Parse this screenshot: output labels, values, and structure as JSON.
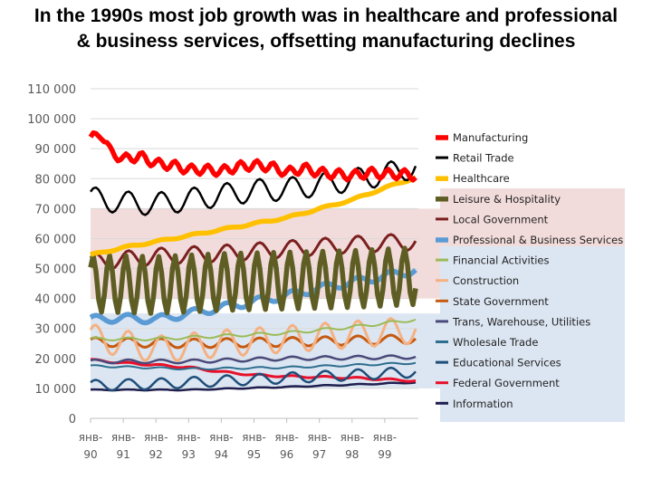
{
  "slide": {
    "title_line1": "In the 1990s most job growth was in healthcare and professional",
    "title_line2": "& business services, offsetting manufacturing declines"
  },
  "chart_data": {
    "type": "line",
    "title": "In the 1990s most job growth was in healthcare and professional & business services, offsetting manufacturing declines",
    "xlabel": "",
    "ylabel": "",
    "ylim": [
      0,
      110000
    ],
    "yticks": [
      "0",
      "10 000",
      "20 000",
      "30 000",
      "40 000",
      "50 000",
      "60 000",
      "70 000",
      "80 000",
      "90 000",
      "100 000",
      "110 000"
    ],
    "xticks": [
      {
        "top": "янв-",
        "bottom": "90"
      },
      {
        "top": "янв-",
        "bottom": "91"
      },
      {
        "top": "янв-",
        "bottom": "92"
      },
      {
        "top": "янв-",
        "bottom": "93"
      },
      {
        "top": "янв-",
        "bottom": "94"
      },
      {
        "top": "янв-",
        "bottom": "95"
      },
      {
        "top": "янв-",
        "bottom": "96"
      },
      {
        "top": "янв-",
        "bottom": "97"
      },
      {
        "top": "янв-",
        "bottom": "98"
      },
      {
        "top": "янв-",
        "bottom": "99"
      }
    ],
    "x_start": "1990-01",
    "x_end": "1999-12",
    "grid": true,
    "legend_position": "right",
    "highlight_bands": [
      {
        "ymin": 40000,
        "ymax": 70000,
        "color": "#f2dcdb"
      },
      {
        "ymin": 10000,
        "ymax": 35000,
        "color": "#dce6f2"
      }
    ],
    "series": [
      {
        "name": "Manufacturing",
        "color": "#ff0000",
        "width": 5.5,
        "points": [
          [
            1990.0,
            93000
          ],
          [
            1990.3,
            95500
          ],
          [
            1990.6,
            89000
          ],
          [
            1991.0,
            86500
          ],
          [
            1991.5,
            87500
          ],
          [
            1992.0,
            85000
          ],
          [
            1992.5,
            84500
          ],
          [
            1993.0,
            83000
          ],
          [
            1993.5,
            83000
          ],
          [
            1994.0,
            82500
          ],
          [
            1994.5,
            84000
          ],
          [
            1995.0,
            84500
          ],
          [
            1995.5,
            84000
          ],
          [
            1996.0,
            82000
          ],
          [
            1996.5,
            83500
          ],
          [
            1997.0,
            82000
          ],
          [
            1997.5,
            81500
          ],
          [
            1998.0,
            81000
          ],
          [
            1998.5,
            82000
          ],
          [
            1999.0,
            81500
          ],
          [
            1999.5,
            81500
          ],
          [
            1999.95,
            81000
          ]
        ],
        "amp": 1600,
        "cycles_per_year": 2
      },
      {
        "name": "Retail Trade",
        "color": "#000000",
        "width": 2.5,
        "points": [
          [
            1990.0,
            73500
          ],
          [
            1991.0,
            72000
          ],
          [
            1992.0,
            71500
          ],
          [
            1993.0,
            73000
          ],
          [
            1994.0,
            74500
          ],
          [
            1995.0,
            76000
          ],
          [
            1996.0,
            76500
          ],
          [
            1997.0,
            78000
          ],
          [
            1998.0,
            79500
          ],
          [
            1999.0,
            81500
          ],
          [
            1999.95,
            84000
          ]
        ],
        "amp": 3800,
        "cycles_per_year": 1
      },
      {
        "name": "Healthcare",
        "color": "#ffc000",
        "width": 5.5,
        "points": [
          [
            1990.0,
            54500
          ],
          [
            1991.0,
            57000
          ],
          [
            1992.0,
            59000
          ],
          [
            1993.0,
            61000
          ],
          [
            1994.0,
            63000
          ],
          [
            1995.0,
            65000
          ],
          [
            1996.0,
            67000
          ],
          [
            1997.0,
            70000
          ],
          [
            1998.0,
            73000
          ],
          [
            1999.0,
            77000
          ],
          [
            1999.95,
            80500
          ]
        ],
        "amp": 300,
        "cycles_per_year": 1
      },
      {
        "name": "Leisure & Hospitality",
        "color": "#5e5e24",
        "width": 5.5,
        "points": [
          [
            1990.0,
            45000
          ],
          [
            1992.0,
            44500
          ],
          [
            1994.0,
            45500
          ],
          [
            1996.0,
            46000
          ],
          [
            1998.0,
            46500
          ],
          [
            1999.95,
            47500
          ]
        ],
        "amp": 9500,
        "cycles_per_year": 2
      },
      {
        "name": "Local Government",
        "color": "#7b1f1f",
        "width": 3,
        "points": [
          [
            1990.0,
            52000
          ],
          [
            1992.0,
            54000
          ],
          [
            1994.0,
            55000
          ],
          [
            1996.0,
            56500
          ],
          [
            1998.0,
            58000
          ],
          [
            1999.95,
            59000
          ]
        ],
        "amp": 2800,
        "cycles_per_year": 1
      },
      {
        "name": "Professional & Business Services",
        "color": "#5b9bd5",
        "width": 5.5,
        "points": [
          [
            1990.0,
            33000
          ],
          [
            1991.0,
            33500
          ],
          [
            1992.0,
            33000
          ],
          [
            1993.0,
            35000
          ],
          [
            1994.0,
            37000
          ],
          [
            1995.0,
            39000
          ],
          [
            1996.0,
            41000
          ],
          [
            1997.0,
            43500
          ],
          [
            1998.0,
            45500
          ],
          [
            1999.0,
            47500
          ],
          [
            1999.95,
            49500
          ]
        ],
        "amp": 1300,
        "cycles_per_year": 1
      },
      {
        "name": "Financial Activities",
        "color": "#9bbb59",
        "width": 2,
        "points": [
          [
            1990.0,
            26500
          ],
          [
            1992.0,
            26500
          ],
          [
            1994.0,
            27500
          ],
          [
            1996.0,
            28500
          ],
          [
            1998.0,
            30500
          ],
          [
            1999.95,
            33000
          ]
        ],
        "amp": 500,
        "cycles_per_year": 1
      },
      {
        "name": "Construction",
        "color": "#f4b183",
        "width": 3,
        "points": [
          [
            1990.0,
            27000
          ],
          [
            1992.0,
            23000
          ],
          [
            1994.0,
            25000
          ],
          [
            1996.0,
            26500
          ],
          [
            1998.0,
            28000
          ],
          [
            1999.95,
            29500
          ]
        ],
        "amp": 4500,
        "cycles_per_year": 1
      },
      {
        "name": "State Government",
        "color": "#c55a11",
        "width": 3,
        "points": [
          [
            1990.0,
            25500
          ],
          [
            1993.0,
            25000
          ],
          [
            1996.0,
            25500
          ],
          [
            1999.95,
            26500
          ]
        ],
        "amp": 1500,
        "cycles_per_year": 1
      },
      {
        "name": "Trans, Warehouse, Utilities",
        "color": "#4a4a7a",
        "width": 2.5,
        "points": [
          [
            1990.0,
            19000
          ],
          [
            1993.0,
            19000
          ],
          [
            1996.0,
            20000
          ],
          [
            1999.95,
            20500
          ]
        ],
        "amp": 600,
        "cycles_per_year": 1
      },
      {
        "name": "Wholesale Trade",
        "color": "#2e6e8e",
        "width": 2,
        "points": [
          [
            1990.0,
            17500
          ],
          [
            1993.0,
            16500
          ],
          [
            1996.0,
            17000
          ],
          [
            1999.95,
            18500
          ]
        ],
        "amp": 300,
        "cycles_per_year": 1
      },
      {
        "name": "Educational Services",
        "color": "#1f4e79",
        "width": 2.5,
        "points": [
          [
            1990.0,
            11000
          ],
          [
            1992.0,
            11500
          ],
          [
            1994.0,
            12500
          ],
          [
            1996.0,
            13500
          ],
          [
            1998.0,
            14500
          ],
          [
            1999.95,
            15500
          ]
        ],
        "amp": 1800,
        "cycles_per_year": 1
      },
      {
        "name": "Federal Government",
        "color": "#e8102a",
        "width": 3,
        "points": [
          [
            1990.0,
            19500
          ],
          [
            1991.0,
            18500
          ],
          [
            1992.0,
            17800
          ],
          [
            1993.0,
            17000
          ],
          [
            1994.0,
            15500
          ],
          [
            1995.0,
            14500
          ],
          [
            1996.0,
            14000
          ],
          [
            1997.0,
            13800
          ],
          [
            1998.0,
            13500
          ],
          [
            1999.0,
            13000
          ],
          [
            1999.95,
            12500
          ]
        ],
        "amp": 300,
        "cycles_per_year": 1
      },
      {
        "name": "Information",
        "color": "#1f1f4f",
        "width": 2.5,
        "points": [
          [
            1990.0,
            9500
          ],
          [
            1993.0,
            9500
          ],
          [
            1996.0,
            10500
          ],
          [
            1999.95,
            12000
          ]
        ],
        "amp": 150,
        "cycles_per_year": 1
      }
    ]
  }
}
